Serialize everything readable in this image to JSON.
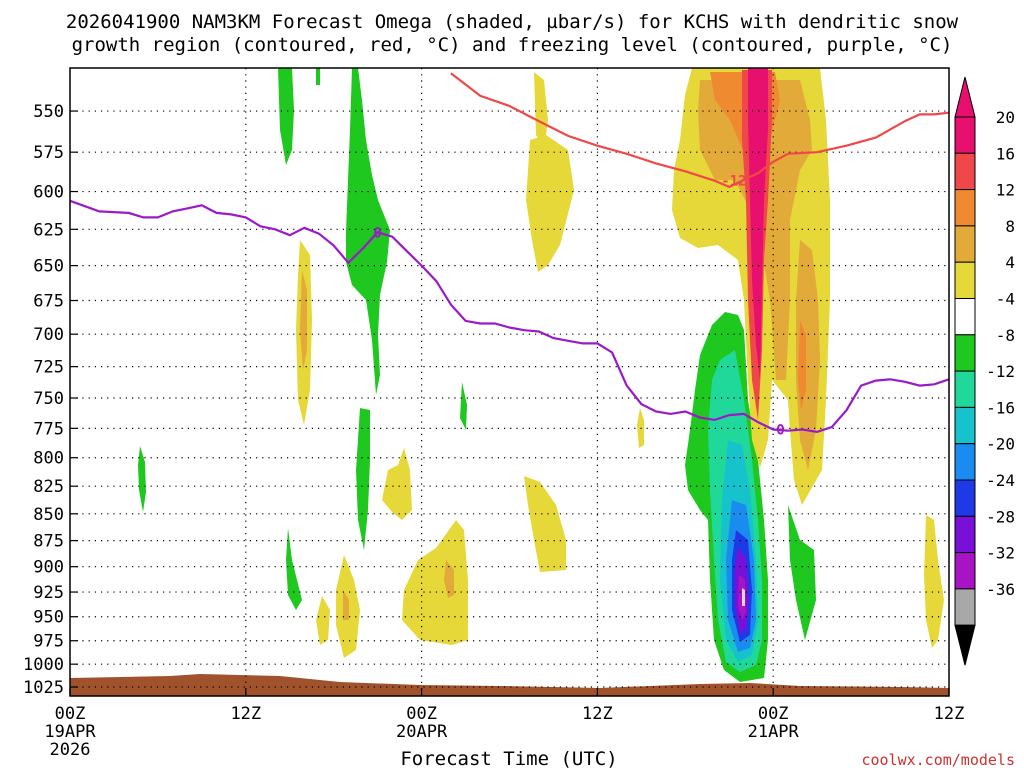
{
  "header": {
    "title_line1": "2026041900 NAM3KM Forecast Omega (shaded, µbar/s) for KCHS with dendritic snow",
    "title_line2": "growth region (contoured, red, °C) and freezing level (contoured, purple, °C)"
  },
  "credit": "coolwx.com/models",
  "chart_data": {
    "type": "heatmap",
    "title": "2026041900 NAM3KM Forecast Omega (shaded, µbar/s) for KCHS with dendritic snow growth region (contoured, red, °C) and freezing level (contoured, purple, °C)",
    "xlabel": "Forecast Time (UTC)",
    "ylabel": "",
    "xlim_hours": [
      0,
      60
    ],
    "ylim_hpa": [
      1035,
      525
    ],
    "y_scale": "log-pressure",
    "y_ticks": [
      550,
      575,
      600,
      625,
      650,
      675,
      700,
      725,
      750,
      775,
      800,
      825,
      850,
      875,
      900,
      925,
      950,
      975,
      1000,
      1025
    ],
    "x_ticks": [
      {
        "hour": 0,
        "lines": [
          "00Z",
          "19APR",
          "2026"
        ]
      },
      {
        "hour": 12,
        "lines": [
          "12Z"
        ]
      },
      {
        "hour": 24,
        "lines": [
          "00Z",
          "20APR"
        ]
      },
      {
        "hour": 36,
        "lines": [
          "12Z"
        ]
      },
      {
        "hour": 48,
        "lines": [
          "00Z",
          "21APR"
        ]
      },
      {
        "hour": 60,
        "lines": [
          "12Z"
        ]
      }
    ],
    "grid": true,
    "colorbar": {
      "labels": [
        "20",
        "16",
        "12",
        "8",
        "4",
        "-4",
        "-8",
        "-12",
        "-16",
        "-20",
        "-24",
        "-28",
        "-32",
        "-36"
      ],
      "colors": [
        "#e8106e",
        "#f04848",
        "#f08a30",
        "#e2aa38",
        "#e6d838",
        "#ffffff",
        "#1ec81e",
        "#20d89a",
        "#16c2cc",
        "#1a8cf0",
        "#1e3ae6",
        "#7810d8",
        "#a814c4",
        "#a8a8a8"
      ],
      "top_color": "#e8106e",
      "bottom_color": "#000000"
    },
    "series": [
      {
        "name": "Freezing level 0 °C (purple)",
        "color": "#9a1ac8",
        "label": "0",
        "points": [
          [
            0,
            606
          ],
          [
            2,
            613
          ],
          [
            4,
            614
          ],
          [
            5,
            617
          ],
          [
            6,
            617
          ],
          [
            7,
            613
          ],
          [
            8,
            611
          ],
          [
            9,
            609
          ],
          [
            10,
            614
          ],
          [
            11,
            615
          ],
          [
            12,
            617
          ],
          [
            13,
            623
          ],
          [
            14,
            625
          ],
          [
            15,
            629
          ],
          [
            16,
            624
          ],
          [
            17,
            628
          ],
          [
            18,
            636
          ],
          [
            19,
            648
          ],
          [
            20,
            638
          ],
          [
            21,
            627
          ],
          [
            22,
            630
          ],
          [
            23,
            640
          ],
          [
            24,
            650
          ],
          [
            25,
            661
          ],
          [
            26,
            678
          ],
          [
            27,
            690
          ],
          [
            28,
            692
          ],
          [
            29,
            692
          ],
          [
            30,
            695
          ],
          [
            31,
            697
          ],
          [
            32,
            698
          ],
          [
            33,
            703
          ],
          [
            34,
            705
          ],
          [
            35,
            707
          ],
          [
            36,
            707
          ],
          [
            37,
            714
          ],
          [
            38,
            740
          ],
          [
            39,
            755
          ],
          [
            40,
            761
          ],
          [
            41,
            763
          ],
          [
            42,
            761
          ],
          [
            43,
            766
          ],
          [
            44,
            768
          ],
          [
            45,
            764
          ],
          [
            46,
            763
          ],
          [
            47,
            770
          ],
          [
            48,
            776
          ],
          [
            49,
            777
          ],
          [
            50,
            776
          ],
          [
            51,
            778
          ],
          [
            52,
            774
          ],
          [
            53,
            760
          ],
          [
            54,
            740
          ],
          [
            55,
            736
          ],
          [
            56,
            735
          ],
          [
            57,
            737
          ],
          [
            58,
            740
          ],
          [
            59,
            739
          ],
          [
            60,
            735
          ]
        ]
      },
      {
        "name": "Dendritic growth -12 °C (red)",
        "color": "#f04848",
        "label": "-12",
        "points": [
          [
            26,
            528
          ],
          [
            28,
            541
          ],
          [
            30,
            547
          ],
          [
            32,
            556
          ],
          [
            34,
            565
          ],
          [
            36,
            571
          ],
          [
            38,
            576
          ],
          [
            40,
            582
          ],
          [
            42,
            587
          ],
          [
            44,
            593
          ],
          [
            45,
            597
          ],
          [
            47,
            588
          ],
          [
            48,
            581
          ],
          [
            49,
            576
          ],
          [
            51,
            575
          ],
          [
            53,
            571
          ],
          [
            55,
            566
          ],
          [
            57,
            556
          ],
          [
            58,
            552
          ],
          [
            59,
            552
          ],
          [
            60,
            551
          ]
        ]
      }
    ]
  }
}
